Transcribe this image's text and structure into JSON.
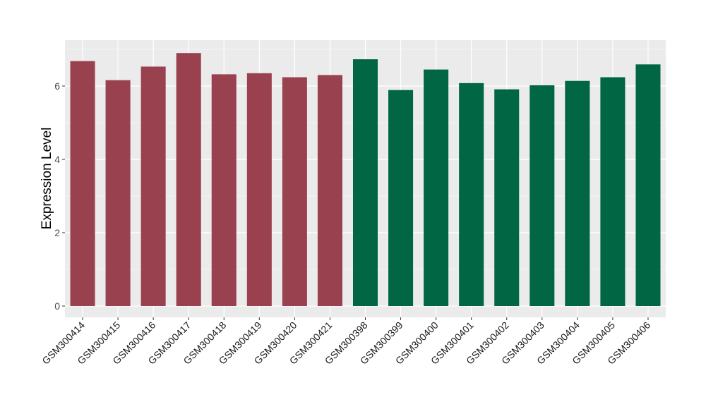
{
  "chart_data": {
    "type": "bar",
    "title": "",
    "xlabel": "",
    "ylabel": "Expression Level",
    "ylim": [
      -0.3,
      7.2
    ],
    "yticks": [
      0,
      2,
      4,
      6
    ],
    "ytick_labels": [
      "0",
      "2",
      "4",
      "6"
    ],
    "grid": true,
    "legend": "none",
    "categories": [
      "GSM300414",
      "GSM300415",
      "GSM300416",
      "GSM300417",
      "GSM300418",
      "GSM300419",
      "GSM300420",
      "GSM300421",
      "GSM300398",
      "GSM300399",
      "GSM300400",
      "GSM300401",
      "GSM300402",
      "GSM300403",
      "GSM300404",
      "GSM300405",
      "GSM300406"
    ],
    "values": [
      6.68,
      6.16,
      6.53,
      6.9,
      6.32,
      6.35,
      6.24,
      6.3,
      6.73,
      5.89,
      6.45,
      6.08,
      5.91,
      6.02,
      6.14,
      6.24,
      6.59
    ],
    "bar_colors": [
      "#9a414f",
      "#9a414f",
      "#9a414f",
      "#9a414f",
      "#9a414f",
      "#9a414f",
      "#9a414f",
      "#9a414f",
      "#016644",
      "#016644",
      "#016644",
      "#016644",
      "#016644",
      "#016644",
      "#016644",
      "#016644",
      "#016644"
    ],
    "panel_background": "#ebebeb",
    "gridline_color": "#ffffff"
  }
}
